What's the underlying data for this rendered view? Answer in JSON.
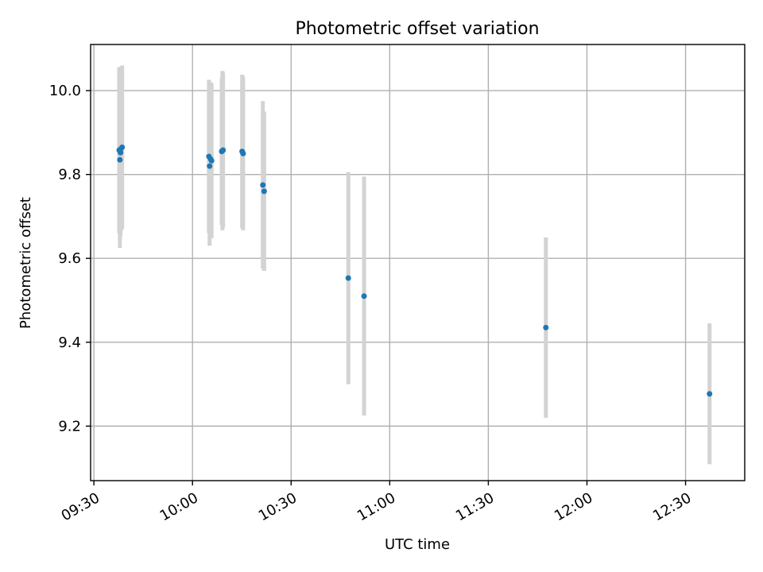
{
  "chart_data": {
    "type": "scatter",
    "title": "Photometric offset variation",
    "xlabel": "UTC time",
    "ylabel": "Photometric offset",
    "x_range_minutes": [
      569,
      768
    ],
    "ylim": [
      9.07,
      10.11
    ],
    "grid": true,
    "colors": {
      "points": "#1f77b4",
      "errorbars": "#d3d3d3",
      "grid": "#b0b0b0"
    },
    "x_ticks": [
      {
        "label": "09:30",
        "minutes": 570
      },
      {
        "label": "10:00",
        "minutes": 600
      },
      {
        "label": "10:30",
        "minutes": 630
      },
      {
        "label": "11:00",
        "minutes": 660
      },
      {
        "label": "11:30",
        "minutes": 690
      },
      {
        "label": "12:00",
        "minutes": 720
      },
      {
        "label": "12:30",
        "minutes": 750
      }
    ],
    "y_ticks": [
      {
        "label": "9.2",
        "value": 9.2
      },
      {
        "label": "9.4",
        "value": 9.4
      },
      {
        "label": "9.6",
        "value": 9.6
      },
      {
        "label": "9.8",
        "value": 9.8
      },
      {
        "label": "10.0",
        "value": 10.0
      }
    ],
    "points": [
      {
        "t": 577.7,
        "y": 9.858,
        "err": 0.198
      },
      {
        "t": 577.9,
        "y": 9.835,
        "err": 0.21
      },
      {
        "t": 578.1,
        "y": 9.852,
        "err": 0.2
      },
      {
        "t": 578.3,
        "y": 9.862,
        "err": 0.195
      },
      {
        "t": 578.6,
        "y": 9.865,
        "err": 0.195
      },
      {
        "t": 605.0,
        "y": 9.843,
        "err": 0.183
      },
      {
        "t": 605.2,
        "y": 9.82,
        "err": 0.19
      },
      {
        "t": 605.5,
        "y": 9.837,
        "err": 0.183
      },
      {
        "t": 605.8,
        "y": 9.833,
        "err": 0.185
      },
      {
        "t": 608.9,
        "y": 9.855,
        "err": 0.175
      },
      {
        "t": 609.1,
        "y": 9.857,
        "err": 0.19
      },
      {
        "t": 609.3,
        "y": 9.858,
        "err": 0.185
      },
      {
        "t": 615.1,
        "y": 9.855,
        "err": 0.183
      },
      {
        "t": 615.4,
        "y": 9.85,
        "err": 0.183
      },
      {
        "t": 621.4,
        "y": 9.775,
        "err": 0.2
      },
      {
        "t": 621.8,
        "y": 9.76,
        "err": 0.19
      },
      {
        "t": 647.4,
        "y": 9.553,
        "err": 0.253
      },
      {
        "t": 652.2,
        "y": 9.51,
        "err": 0.285
      },
      {
        "t": 707.5,
        "y": 9.435,
        "err": 0.215
      },
      {
        "t": 757.3,
        "y": 9.277,
        "err": 0.168
      }
    ]
  }
}
